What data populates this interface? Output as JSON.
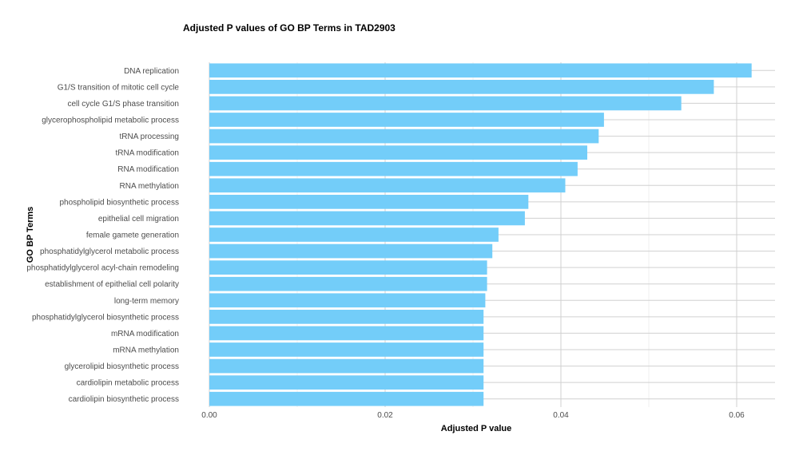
{
  "chart_data": {
    "type": "bar",
    "orientation": "horizontal",
    "title": "Adjusted P values of GO BP Terms in TAD2903",
    "xlabel": "Adjusted P value",
    "ylabel": "GO BP Terms",
    "xlim": [
      0,
      0.065
    ],
    "xticks": [
      0.0,
      0.02,
      0.04,
      0.06
    ],
    "xtick_labels": [
      "0.00",
      "0.02",
      "0.04",
      "0.06"
    ],
    "grid": true,
    "bar_color": "#73CDF9",
    "categories": [
      "DNA replication",
      "G1/S transition of mitotic cell cycle",
      "cell cycle G1/S phase transition",
      "glycerophospholipid metabolic process",
      "tRNA processing",
      "tRNA modification",
      "RNA modification",
      "RNA methylation",
      "phospholipid biosynthetic process",
      "epithelial cell migration",
      "female gamete generation",
      "phosphatidylglycerol metabolic process",
      "phosphatidylglycerol acyl-chain remodeling",
      "establishment of epithelial cell polarity",
      "long-term memory",
      "phosphatidylglycerol biosynthetic process",
      "mRNA modification",
      "mRNA methylation",
      "glycerolipid biosynthetic process",
      "cardiolipin metabolic process",
      "cardiolipin biosynthetic process"
    ],
    "values": [
      0.0617,
      0.0574,
      0.0537,
      0.0449,
      0.0443,
      0.043,
      0.0419,
      0.0405,
      0.0363,
      0.0359,
      0.0329,
      0.0322,
      0.0316,
      0.0316,
      0.0314,
      0.0312,
      0.0312,
      0.0312,
      0.0312,
      0.0312,
      0.0312
    ]
  }
}
